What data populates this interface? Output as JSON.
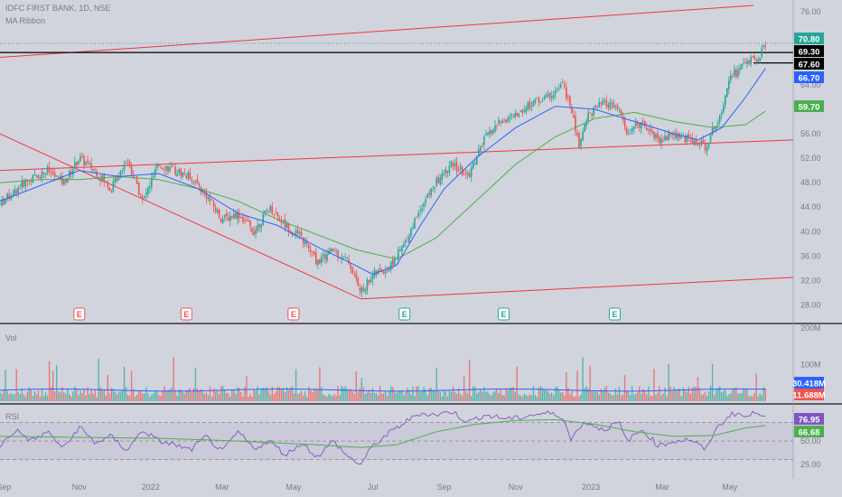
{
  "header": {
    "symbol_line": "IDFC FIRST BANK, 1D, NSE",
    "indicator": "MA Ribbon"
  },
  "panes": {
    "volume_label": "Vol",
    "rsi_label": "RSI"
  },
  "colors": {
    "background": "#d1d4dc",
    "up": "#26a69a",
    "down": "#ef5350",
    "ma_fast": "#2962ff",
    "ma_slow": "#4caf50",
    "trendline": "#f23645",
    "rsi": "#7e57c2",
    "hline": "#000000"
  },
  "chart_data": [
    {
      "type": "candlestick",
      "price_axis_ticks": [
        "76.00",
        "72.00",
        "68.00",
        "64.00",
        "60.00",
        "56.00",
        "52.00",
        "48.00",
        "44.00",
        "40.00",
        "36.00",
        "32.00",
        "28.00"
      ],
      "ylim": [
        26,
        77
      ],
      "x_ticks": [
        "Sep",
        "Nov",
        "2022",
        "Mar",
        "May",
        "Jul",
        "Sep",
        "Nov",
        "2023",
        "Mar",
        "May"
      ],
      "price_path": [
        [
          0,
          44.5
        ],
        [
          0.03,
          48
        ],
        [
          0.06,
          50
        ],
        [
          0.08,
          48
        ],
        [
          0.1,
          52
        ],
        [
          0.12,
          50
        ],
        [
          0.14,
          47
        ],
        [
          0.16,
          52
        ],
        [
          0.18,
          45
        ],
        [
          0.2,
          51
        ],
        [
          0.22,
          50
        ],
        [
          0.24,
          49
        ],
        [
          0.26,
          46
        ],
        [
          0.28,
          42
        ],
        [
          0.3,
          43
        ],
        [
          0.32,
          40
        ],
        [
          0.34,
          44
        ],
        [
          0.36,
          41
        ],
        [
          0.38,
          39
        ],
        [
          0.4,
          35
        ],
        [
          0.42,
          37
        ],
        [
          0.44,
          35
        ],
        [
          0.455,
          30
        ],
        [
          0.47,
          33
        ],
        [
          0.49,
          34
        ],
        [
          0.51,
          38
        ],
        [
          0.53,
          44
        ],
        [
          0.55,
          48
        ],
        [
          0.57,
          51
        ],
        [
          0.59,
          49
        ],
        [
          0.61,
          55
        ],
        [
          0.63,
          58
        ],
        [
          0.65,
          59
        ],
        [
          0.67,
          61
        ],
        [
          0.69,
          62
        ],
        [
          0.71,
          64
        ],
        [
          0.72,
          60
        ],
        [
          0.73,
          54
        ],
        [
          0.74,
          59
        ],
        [
          0.76,
          61
        ],
        [
          0.78,
          60
        ],
        [
          0.79,
          56
        ],
        [
          0.81,
          58
        ],
        [
          0.83,
          55
        ],
        [
          0.85,
          56
        ],
        [
          0.87,
          55
        ],
        [
          0.89,
          54
        ],
        [
          0.9,
          57
        ],
        [
          0.91,
          60
        ],
        [
          0.92,
          66
        ],
        [
          0.93,
          66
        ],
        [
          0.94,
          68
        ],
        [
          0.955,
          68
        ],
        [
          0.965,
          70.8
        ]
      ],
      "ma_fast_path": [
        [
          0,
          45
        ],
        [
          0.05,
          47.5
        ],
        [
          0.1,
          50
        ],
        [
          0.15,
          49
        ],
        [
          0.2,
          49.5
        ],
        [
          0.25,
          47
        ],
        [
          0.3,
          43
        ],
        [
          0.35,
          41
        ],
        [
          0.4,
          37.5
        ],
        [
          0.44,
          35
        ],
        [
          0.47,
          33
        ],
        [
          0.5,
          34.5
        ],
        [
          0.53,
          41
        ],
        [
          0.56,
          47
        ],
        [
          0.6,
          52
        ],
        [
          0.65,
          57
        ],
        [
          0.7,
          60.5
        ],
        [
          0.75,
          60
        ],
        [
          0.8,
          58
        ],
        [
          0.85,
          56
        ],
        [
          0.88,
          55
        ],
        [
          0.91,
          57
        ],
        [
          0.94,
          62
        ],
        [
          0.965,
          66.7
        ]
      ],
      "ma_slow_path": [
        [
          0,
          48
        ],
        [
          0.05,
          48.5
        ],
        [
          0.1,
          48.5
        ],
        [
          0.15,
          49
        ],
        [
          0.2,
          48.5
        ],
        [
          0.25,
          47
        ],
        [
          0.3,
          45
        ],
        [
          0.35,
          42
        ],
        [
          0.4,
          39.5
        ],
        [
          0.45,
          37
        ],
        [
          0.5,
          35.5
        ],
        [
          0.55,
          39
        ],
        [
          0.6,
          45
        ],
        [
          0.65,
          51
        ],
        [
          0.7,
          55.5
        ],
        [
          0.75,
          58.5
        ],
        [
          0.8,
          59.5
        ],
        [
          0.85,
          58
        ],
        [
          0.9,
          57
        ],
        [
          0.94,
          57.5
        ],
        [
          0.965,
          59.7
        ]
      ],
      "trendlines": [
        {
          "from": [
            0,
            68.5
          ],
          "to": [
            0.95,
            77
          ]
        },
        {
          "from": [
            0,
            50
          ],
          "to": [
            1,
            55
          ]
        },
        {
          "from": [
            0,
            56
          ],
          "to": [
            0.455,
            29
          ]
        },
        {
          "from": [
            0.455,
            29
          ],
          "to": [
            1,
            32.5
          ]
        }
      ],
      "horizontal_lines": [
        {
          "value": 69.3,
          "from": 0,
          "to": 1
        },
        {
          "value": 67.6,
          "from": 0.95,
          "to": 1
        }
      ],
      "last_price_line": 70.8,
      "earnings_markers": [
        {
          "x": 0.1,
          "label": "E",
          "kind": "miss"
        },
        {
          "x": 0.235,
          "label": "E",
          "kind": "miss"
        },
        {
          "x": 0.37,
          "label": "E",
          "kind": "miss"
        },
        {
          "x": 0.51,
          "label": "E",
          "kind": "beat"
        },
        {
          "x": 0.635,
          "label": "E",
          "kind": "beat"
        },
        {
          "x": 0.775,
          "label": "E",
          "kind": "beat"
        }
      ],
      "price_labels": [
        {
          "text": "70.80",
          "value": 70.8,
          "bg": "#26a69a",
          "fg": "#ffffff"
        },
        {
          "text": "69.30",
          "value": 69.3,
          "bg": "#000000",
          "fg": "#ffffff"
        },
        {
          "text": "67.60",
          "value": 67.6,
          "bg": "#000000",
          "fg": "#ffffff"
        },
        {
          "text": "66.70",
          "value": 66.7,
          "bg": "#2962ff",
          "fg": "#ffffff"
        },
        {
          "text": "59.70",
          "value": 59.7,
          "bg": "#4caf50",
          "fg": "#ffffff"
        }
      ]
    },
    {
      "type": "bar",
      "pane": "volume",
      "axis_ticks": [
        "200M",
        "100M"
      ],
      "ylim": [
        0,
        200
      ],
      "baseline_ma": 30.418,
      "last_labels": [
        {
          "text": "30.418M",
          "bg": "#2962ff",
          "fg": "#ffffff"
        },
        {
          "text": "11.688M",
          "bg": "#ef5350",
          "fg": "#ffffff"
        }
      ]
    },
    {
      "type": "line",
      "pane": "rsi",
      "axis_ticks": [
        "50.00",
        "25.00"
      ],
      "ylim": [
        20,
        85
      ],
      "levels": [
        70,
        50,
        30
      ],
      "path": [
        [
          0,
          45
        ],
        [
          0.02,
          62
        ],
        [
          0.04,
          50
        ],
        [
          0.06,
          60
        ],
        [
          0.08,
          42
        ],
        [
          0.1,
          65
        ],
        [
          0.12,
          48
        ],
        [
          0.14,
          55
        ],
        [
          0.16,
          40
        ],
        [
          0.18,
          62
        ],
        [
          0.2,
          50
        ],
        [
          0.22,
          46
        ],
        [
          0.24,
          40
        ],
        [
          0.26,
          55
        ],
        [
          0.28,
          38
        ],
        [
          0.3,
          60
        ],
        [
          0.32,
          42
        ],
        [
          0.34,
          50
        ],
        [
          0.36,
          35
        ],
        [
          0.38,
          48
        ],
        [
          0.4,
          33
        ],
        [
          0.42,
          50
        ],
        [
          0.44,
          32
        ],
        [
          0.455,
          25
        ],
        [
          0.47,
          45
        ],
        [
          0.49,
          58
        ],
        [
          0.51,
          70
        ],
        [
          0.53,
          80
        ],
        [
          0.55,
          78
        ],
        [
          0.57,
          82
        ],
        [
          0.59,
          70
        ],
        [
          0.61,
          78
        ],
        [
          0.63,
          75
        ],
        [
          0.65,
          74
        ],
        [
          0.67,
          78
        ],
        [
          0.69,
          80
        ],
        [
          0.71,
          76
        ],
        [
          0.72,
          50
        ],
        [
          0.73,
          66
        ],
        [
          0.74,
          70
        ],
        [
          0.76,
          62
        ],
        [
          0.78,
          70
        ],
        [
          0.79,
          50
        ],
        [
          0.81,
          62
        ],
        [
          0.83,
          45
        ],
        [
          0.85,
          50
        ],
        [
          0.87,
          52
        ],
        [
          0.89,
          40
        ],
        [
          0.9,
          60
        ],
        [
          0.92,
          78
        ],
        [
          0.93,
          80
        ],
        [
          0.94,
          75
        ],
        [
          0.955,
          82
        ],
        [
          0.965,
          76.95
        ]
      ],
      "ma_path": [
        [
          0,
          55
        ],
        [
          0.1,
          54
        ],
        [
          0.2,
          53
        ],
        [
          0.3,
          50
        ],
        [
          0.4,
          46
        ],
        [
          0.455,
          43
        ],
        [
          0.5,
          46
        ],
        [
          0.55,
          60
        ],
        [
          0.6,
          68
        ],
        [
          0.65,
          72
        ],
        [
          0.7,
          73
        ],
        [
          0.75,
          68
        ],
        [
          0.8,
          60
        ],
        [
          0.85,
          55
        ],
        [
          0.9,
          56
        ],
        [
          0.94,
          64
        ],
        [
          0.965,
          66.68
        ]
      ],
      "last_labels": [
        {
          "text": "76.95",
          "bg": "#7e57c2",
          "fg": "#ffffff"
        },
        {
          "text": "66.68",
          "bg": "#4caf50",
          "fg": "#ffffff"
        }
      ]
    }
  ]
}
